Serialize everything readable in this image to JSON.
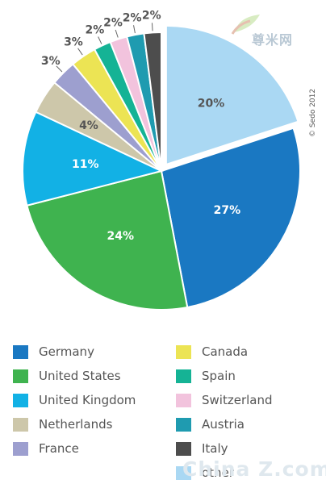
{
  "chart_data": {
    "type": "pie",
    "slices": [
      {
        "label": "other",
        "value": 20,
        "value_label": "20%",
        "color": "#aad8f3"
      },
      {
        "label": "Germany",
        "value": 27,
        "value_label": "27%",
        "color": "#1a78c2"
      },
      {
        "label": "United States",
        "value": 24,
        "value_label": "24%",
        "color": "#3fb34f"
      },
      {
        "label": "United Kingdom",
        "value": 11,
        "value_label": "11%",
        "color": "#12b1e5"
      },
      {
        "label": "Netherlands",
        "value": 4,
        "value_label": "4%",
        "color": "#cdc7aa"
      },
      {
        "label": "France",
        "value": 3,
        "value_label": "3%",
        "color": "#9d9fcf"
      },
      {
        "label": "Canada",
        "value": 3,
        "value_label": "3%",
        "color": "#ece454"
      },
      {
        "label": "Spain",
        "value": 2,
        "value_label": "2%",
        "color": "#15b395"
      },
      {
        "label": "Switzerland",
        "value": 2,
        "value_label": "2%",
        "color": "#f2c3dd"
      },
      {
        "label": "Austria",
        "value": 2,
        "value_label": "2%",
        "color": "#1f9bb0"
      },
      {
        "label": "Italy",
        "value": 2,
        "value_label": "2%",
        "color": "#4d4d4d"
      }
    ],
    "legend": [
      {
        "label": "Germany",
        "color": "#1a78c2"
      },
      {
        "label": "United States",
        "color": "#3fb34f"
      },
      {
        "label": "United Kingdom",
        "color": "#12b1e5"
      },
      {
        "label": "Netherlands",
        "color": "#cdc7aa"
      },
      {
        "label": "France",
        "color": "#9d9fcf"
      },
      {
        "label": "Canada",
        "color": "#ece454"
      },
      {
        "label": "Spain",
        "color": "#15b395"
      },
      {
        "label": "Switzerland",
        "color": "#f2c3dd"
      },
      {
        "label": "Austria",
        "color": "#1f9bb0"
      },
      {
        "label": "Italy",
        "color": "#4d4d4d"
      },
      {
        "label": "other",
        "color": "#aad8f3"
      }
    ],
    "legend_placement": "bottom"
  },
  "copyright": "© Sedo 2012",
  "watermarks": {
    "top": "尊米网",
    "bottom": "China Z.com"
  }
}
